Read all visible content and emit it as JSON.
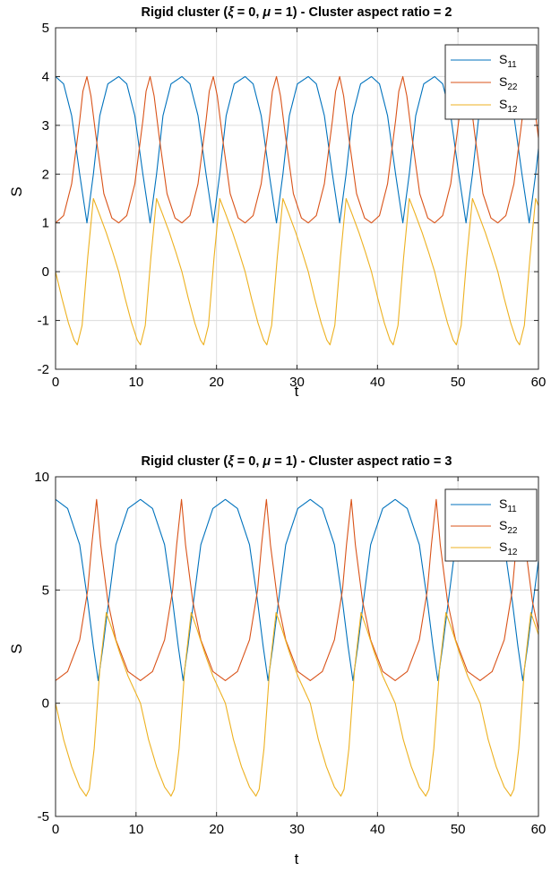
{
  "colors": {
    "s11": "#0072BD",
    "s22": "#D95319",
    "s12": "#EDB120",
    "grid": "#dcdcdc",
    "axis": "#262626"
  },
  "chart_data": [
    {
      "type": "line",
      "title_parts": [
        "Rigid cluster (",
        "ξ",
        " = 0, ",
        "μ",
        " = 1) - Cluster aspect ratio = 2"
      ],
      "xlabel": "t",
      "ylabel": "S",
      "xlim": [
        0,
        60
      ],
      "ylim": [
        -2,
        5
      ],
      "xticks": [
        "0",
        "10",
        "20",
        "30",
        "40",
        "50",
        "60"
      ],
      "yticks": [
        "-2",
        "-1",
        "0",
        "1",
        "2",
        "3",
        "4",
        "5"
      ],
      "grid": true,
      "legend_position": "top-right",
      "period": 7.85,
      "series": [
        {
          "base": "S",
          "sub": "11",
          "color_key": "s11",
          "x": [
            0,
            1,
            2,
            3,
            3.9,
            4.7,
            5.5,
            6.5,
            7.85
          ],
          "y": [
            4,
            3.85,
            3.2,
            2.0,
            1.0,
            2.0,
            3.2,
            3.85,
            4
          ]
        },
        {
          "base": "S",
          "sub": "22",
          "color_key": "s22",
          "x": [
            0,
            1,
            2,
            3,
            3.4,
            3.9,
            4.4,
            5,
            6,
            7,
            7.85
          ],
          "y": [
            1,
            1.15,
            1.8,
            3.1,
            3.7,
            4,
            3.6,
            2.8,
            1.6,
            1.1,
            1
          ]
        },
        {
          "base": "S",
          "sub": "12",
          "color_key": "s12",
          "x": [
            0,
            0.8,
            1.6,
            2.3,
            2.7,
            3.3,
            4.0,
            4.7,
            5.4,
            6.3,
            7.1,
            7.85
          ],
          "y": [
            0,
            -0.55,
            -1.05,
            -1.4,
            -1.5,
            -1.1,
            0.3,
            1.5,
            1.2,
            0.8,
            0.4,
            0
          ]
        }
      ]
    },
    {
      "type": "line",
      "title_parts": [
        "Rigid cluster (",
        "ξ",
        " = 0, ",
        "μ",
        " = 1) - Cluster aspect ratio = 3"
      ],
      "xlabel": "t",
      "ylabel": "S",
      "xlim": [
        0,
        60
      ],
      "ylim": [
        -5,
        10
      ],
      "xticks": [
        "0",
        "10",
        "20",
        "30",
        "40",
        "50",
        "60"
      ],
      "yticks": [
        "-5",
        "0",
        "5",
        "10"
      ],
      "grid": true,
      "legend_position": "top-right",
      "period": 10.55,
      "series": [
        {
          "base": "S",
          "sub": "11",
          "color_key": "s11",
          "x": [
            0,
            1.5,
            3,
            4,
            4.7,
            5.3,
            5.9,
            6.6,
            7.5,
            9,
            10.55
          ],
          "y": [
            9,
            8.6,
            7,
            4.5,
            2.5,
            1,
            2.5,
            4.5,
            7,
            8.6,
            9
          ]
        },
        {
          "base": "S",
          "sub": "22",
          "color_key": "s22",
          "x": [
            0,
            1.5,
            3,
            4,
            4.5,
            5.1,
            5.6,
            6.5,
            7.5,
            9,
            10.55
          ],
          "y": [
            1,
            1.4,
            2.8,
            5,
            7,
            9,
            7,
            4.5,
            2.8,
            1.4,
            1
          ]
        },
        {
          "base": "S",
          "sub": "12",
          "color_key": "s12",
          "x": [
            0,
            1,
            2,
            3,
            3.8,
            4.2,
            4.8,
            5.5,
            6.3,
            7,
            8,
            9,
            10.55
          ],
          "y": [
            0,
            -1.6,
            -2.8,
            -3.7,
            -4.1,
            -3.8,
            -2,
            1.5,
            4,
            3.3,
            2.2,
            1.2,
            0
          ]
        }
      ]
    }
  ]
}
